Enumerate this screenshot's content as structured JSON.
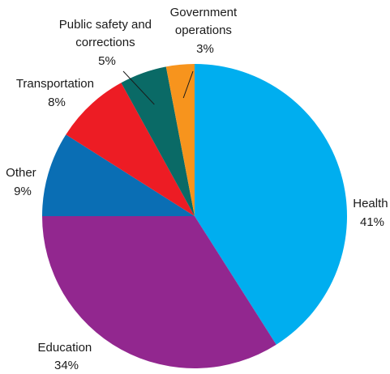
{
  "chart_data": {
    "type": "pie",
    "title": "",
    "slices": [
      {
        "label": "Health",
        "value": 41,
        "display": "41%",
        "color": "#00aeef"
      },
      {
        "label": "Education",
        "value": 34,
        "display": "34%",
        "color": "#92278f"
      },
      {
        "label": "Other",
        "value": 9,
        "display": "9%",
        "color": "#0a6eb4"
      },
      {
        "label": "Transportation",
        "value": 8,
        "display": "8%",
        "color": "#ed1c24"
      },
      {
        "label": "Public safety and corrections",
        "value": 5,
        "display": "5%",
        "color": "#0a6a66"
      },
      {
        "label": "Government operations",
        "value": 3,
        "display": "3%",
        "color": "#f7941d"
      }
    ],
    "start": "12 o'clock",
    "direction": "clockwise",
    "legend": "none"
  }
}
